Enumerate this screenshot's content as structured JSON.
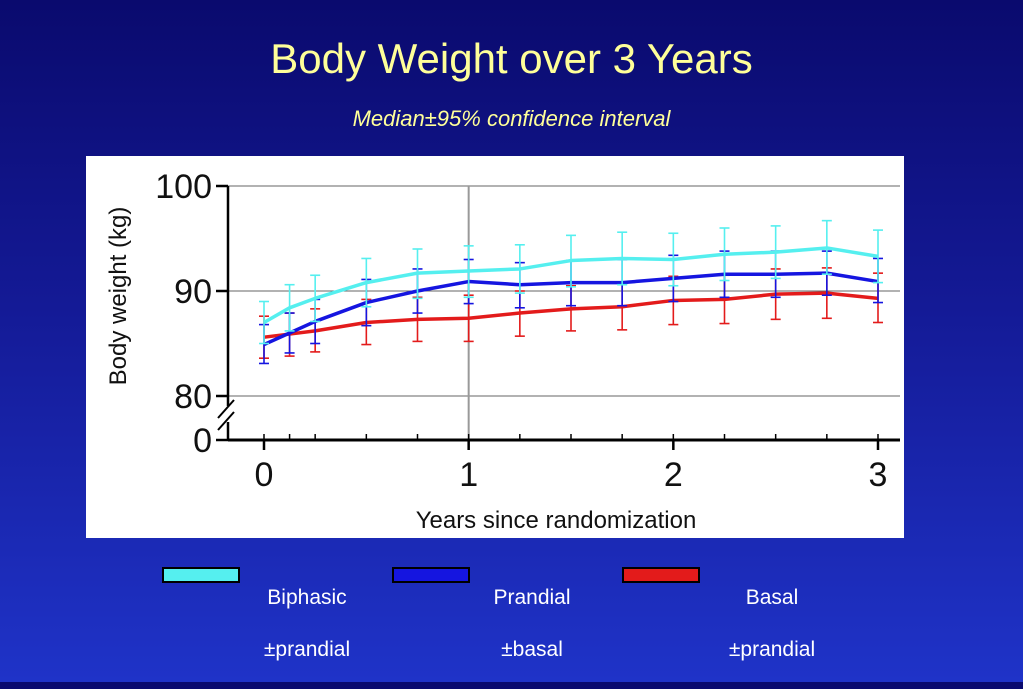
{
  "slide": {
    "title": "Body Weight over 3 Years",
    "subtitle": "Median±95% confidence interval"
  },
  "colors": {
    "background": "#141a96",
    "title": "#ffff99",
    "biphasic": "#55efef",
    "prandial": "#1515e0",
    "basal": "#e31b1b"
  },
  "legend": [
    {
      "label_line1": "Biphasic",
      "label_line2": "±prandial",
      "color": "#55efef"
    },
    {
      "label_line1": "Prandial",
      "label_line2": "±basal",
      "color": "#1515e0"
    },
    {
      "label_line1": "Basal",
      "label_line2": "±prandial",
      "color": "#e31b1b"
    }
  ],
  "chart_data": {
    "type": "line",
    "title": "",
    "xlabel": "Years since randomization",
    "ylabel": "Body weight (kg)",
    "xlim": [
      0,
      3
    ],
    "ylim": [
      80,
      100
    ],
    "x_ticks": [
      "0",
      "1",
      "2",
      "3"
    ],
    "y_ticks": [
      "100",
      "90",
      "80",
      "0"
    ],
    "axis_break": true,
    "grid": "horizontal at 80, 90, 100; vertical at 1",
    "x": [
      0,
      0.125,
      0.25,
      0.5,
      0.75,
      1.0,
      1.25,
      1.5,
      1.75,
      2.0,
      2.25,
      2.5,
      2.75,
      3.0
    ],
    "series": [
      {
        "name": "Biphasic ±prandial",
        "color": "#55efef",
        "values": [
          87.0,
          88.4,
          89.3,
          90.8,
          91.7,
          91.9,
          92.1,
          92.9,
          93.1,
          93.0,
          93.5,
          93.7,
          94.1,
          93.3
        ],
        "err_low": [
          85.0,
          86.2,
          87.1,
          88.5,
          89.3,
          89.4,
          89.8,
          90.4,
          90.6,
          90.5,
          91.0,
          91.2,
          91.6,
          90.8
        ],
        "err_high": [
          89.0,
          90.6,
          91.5,
          93.1,
          94.0,
          94.3,
          94.4,
          95.3,
          95.6,
          95.5,
          96.0,
          96.2,
          96.7,
          95.8
        ]
      },
      {
        "name": "Prandial ±basal",
        "color": "#1515e0",
        "values": [
          84.9,
          86.0,
          87.1,
          88.9,
          90.0,
          90.9,
          90.6,
          90.8,
          90.8,
          91.2,
          91.6,
          91.6,
          91.7,
          90.9
        ],
        "err_low": [
          83.1,
          84.1,
          85.0,
          86.7,
          87.9,
          88.8,
          88.4,
          88.6,
          88.6,
          89.0,
          89.4,
          89.4,
          89.6,
          88.9
        ],
        "err_high": [
          86.8,
          87.9,
          89.2,
          91.1,
          92.1,
          93.0,
          92.7,
          92.9,
          93.0,
          93.4,
          93.8,
          93.8,
          93.8,
          93.1
        ]
      },
      {
        "name": "Basal ±prandial",
        "color": "#e31b1b",
        "values": [
          85.6,
          85.9,
          86.2,
          87.0,
          87.3,
          87.4,
          87.9,
          88.3,
          88.5,
          89.1,
          89.2,
          89.7,
          89.8,
          89.3
        ],
        "err_low": [
          83.6,
          83.8,
          84.2,
          84.9,
          85.2,
          85.2,
          85.7,
          86.2,
          86.3,
          86.8,
          86.9,
          87.3,
          87.4,
          87.0
        ],
        "err_high": [
          87.6,
          87.9,
          88.3,
          89.2,
          89.4,
          89.6,
          90.0,
          90.5,
          90.7,
          91.4,
          91.5,
          92.1,
          92.2,
          91.7
        ]
      }
    ]
  }
}
